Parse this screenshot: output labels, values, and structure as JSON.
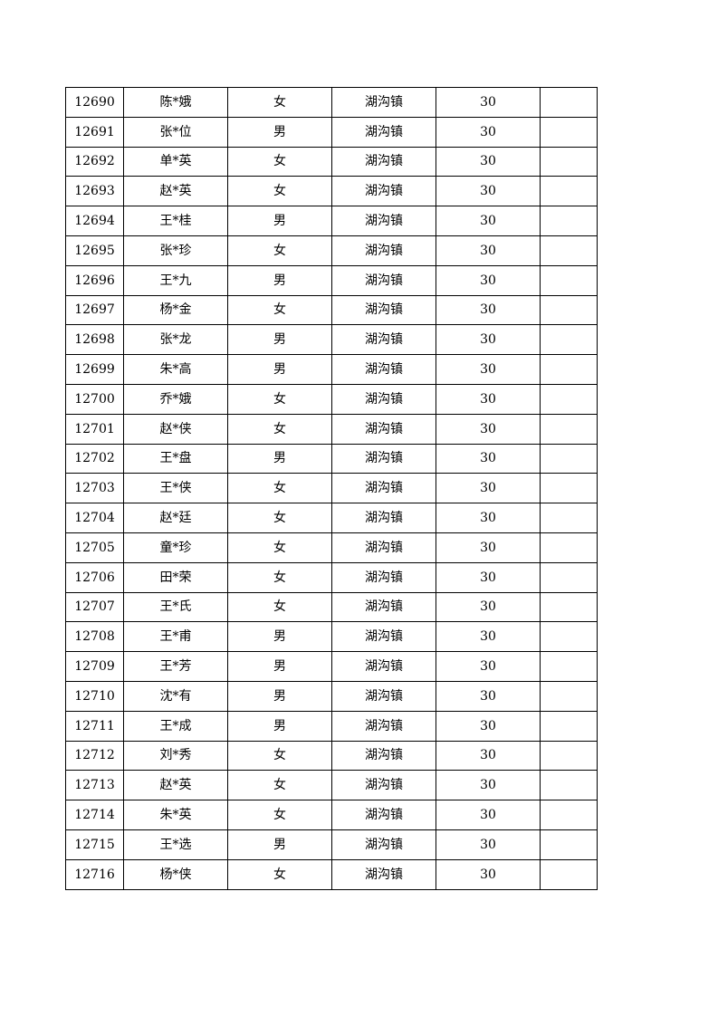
{
  "table": {
    "rows": [
      [
        "12690",
        "陈*娥",
        "女",
        "湖沟镇",
        "30",
        ""
      ],
      [
        "12691",
        "张*位",
        "男",
        "湖沟镇",
        "30",
        ""
      ],
      [
        "12692",
        "单*英",
        "女",
        "湖沟镇",
        "30",
        ""
      ],
      [
        "12693",
        "赵*英",
        "女",
        "湖沟镇",
        "30",
        ""
      ],
      [
        "12694",
        "王*桂",
        "男",
        "湖沟镇",
        "30",
        ""
      ],
      [
        "12695",
        "张*珍",
        "女",
        "湖沟镇",
        "30",
        ""
      ],
      [
        "12696",
        "王*九",
        "男",
        "湖沟镇",
        "30",
        ""
      ],
      [
        "12697",
        "杨*金",
        "女",
        "湖沟镇",
        "30",
        ""
      ],
      [
        "12698",
        "张*龙",
        "男",
        "湖沟镇",
        "30",
        ""
      ],
      [
        "12699",
        "朱*高",
        "男",
        "湖沟镇",
        "30",
        ""
      ],
      [
        "12700",
        "乔*娥",
        "女",
        "湖沟镇",
        "30",
        ""
      ],
      [
        "12701",
        "赵*侠",
        "女",
        "湖沟镇",
        "30",
        ""
      ],
      [
        "12702",
        "王*盘",
        "男",
        "湖沟镇",
        "30",
        ""
      ],
      [
        "12703",
        "王*侠",
        "女",
        "湖沟镇",
        "30",
        ""
      ],
      [
        "12704",
        "赵*廷",
        "女",
        "湖沟镇",
        "30",
        ""
      ],
      [
        "12705",
        "童*珍",
        "女",
        "湖沟镇",
        "30",
        ""
      ],
      [
        "12706",
        "田*荣",
        "女",
        "湖沟镇",
        "30",
        ""
      ],
      [
        "12707",
        "王*氏",
        "女",
        "湖沟镇",
        "30",
        ""
      ],
      [
        "12708",
        "王*甫",
        "男",
        "湖沟镇",
        "30",
        ""
      ],
      [
        "12709",
        "王*芳",
        "男",
        "湖沟镇",
        "30",
        ""
      ],
      [
        "12710",
        "沈*有",
        "男",
        "湖沟镇",
        "30",
        ""
      ],
      [
        "12711",
        "王*成",
        "男",
        "湖沟镇",
        "30",
        ""
      ],
      [
        "12712",
        "刘*秀",
        "女",
        "湖沟镇",
        "30",
        ""
      ],
      [
        "12713",
        "赵*英",
        "女",
        "湖沟镇",
        "30",
        ""
      ],
      [
        "12714",
        "朱*英",
        "女",
        "湖沟镇",
        "30",
        ""
      ],
      [
        "12715",
        "王*选",
        "男",
        "湖沟镇",
        "30",
        ""
      ],
      [
        "12716",
        "杨*侠",
        "女",
        "湖沟镇",
        "30",
        ""
      ]
    ]
  }
}
